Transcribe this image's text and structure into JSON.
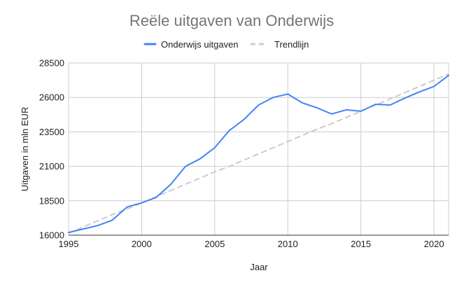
{
  "chart_data": {
    "type": "line",
    "title": "Reële uitgaven van Onderwijs",
    "xlabel": "Jaar",
    "ylabel": "Uitgaven in mln EUR",
    "xlim": [
      1995,
      2021
    ],
    "ylim": [
      16000,
      28500
    ],
    "x_ticks": [
      1995,
      2000,
      2005,
      2010,
      2015,
      2020
    ],
    "y_ticks": [
      16000,
      18500,
      21000,
      23500,
      26000,
      28500
    ],
    "grid": true,
    "legend_position": "top",
    "x": [
      1995,
      1996,
      1997,
      1998,
      1999,
      2000,
      2001,
      2002,
      2003,
      2004,
      2005,
      2006,
      2007,
      2008,
      2009,
      2010,
      2011,
      2012,
      2013,
      2014,
      2015,
      2016,
      2017,
      2018,
      2019,
      2020,
      2021
    ],
    "series": [
      {
        "name": "Onderwijs uitgaven",
        "color": "#4285f4",
        "style": "solid",
        "values": [
          16200,
          16450,
          16700,
          17100,
          18050,
          18350,
          18750,
          19700,
          21000,
          21550,
          22350,
          23600,
          24400,
          25450,
          26000,
          26250,
          25600,
          25250,
          24800,
          25100,
          25000,
          25500,
          25450,
          25950,
          26400,
          26800,
          27600
        ]
      },
      {
        "name": "Trendlijn",
        "color": "#cccccc",
        "style": "dashed",
        "values": [
          16150,
          16600,
          17050,
          17500,
          17900,
          18350,
          18800,
          19250,
          19700,
          20150,
          20600,
          21000,
          21450,
          21900,
          22350,
          22800,
          23250,
          23700,
          24100,
          24550,
          25000,
          25450,
          25900,
          26350,
          26800,
          27250,
          27700
        ]
      }
    ]
  }
}
